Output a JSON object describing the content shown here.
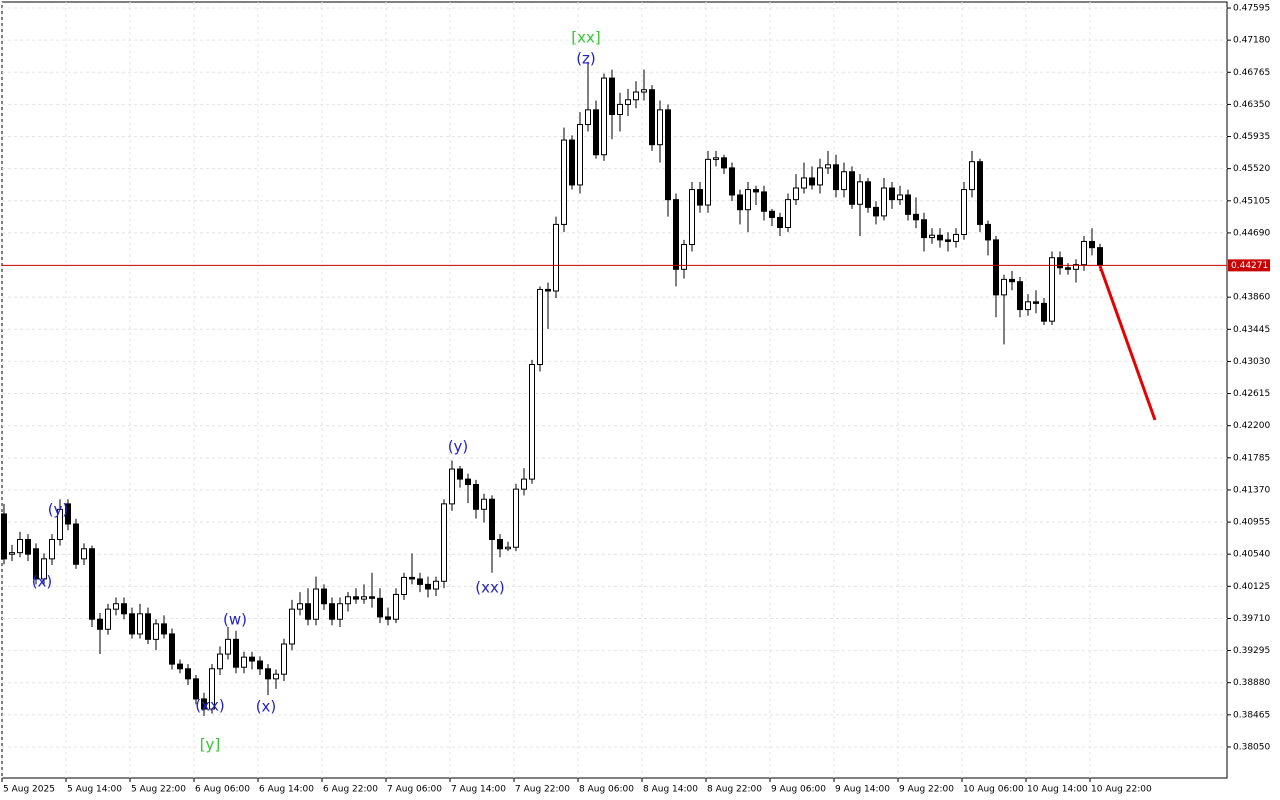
{
  "chart_data": {
    "type": "candlestick",
    "categories": [
      "5 Aug 2025",
      null,
      null,
      null,
      null,
      null,
      null,
      null,
      "5 Aug 14:00",
      null,
      null,
      null,
      null,
      null,
      null,
      null,
      "5 Aug 22:00",
      null,
      null,
      null,
      null,
      null,
      null,
      null,
      "6 Aug 06:00",
      null,
      null,
      null,
      null,
      null,
      null,
      null,
      "6 Aug 14:00",
      null,
      null,
      null,
      null,
      null,
      null,
      null,
      "6 Aug 22:00",
      null,
      null,
      null,
      null,
      null,
      null,
      null,
      "7 Aug 06:00",
      null,
      null,
      null,
      null,
      null,
      null,
      null,
      "7 Aug 14:00",
      null,
      null,
      null,
      null,
      null,
      null,
      null,
      "7 Aug 22:00",
      null,
      null,
      null,
      null,
      null,
      null,
      null,
      "8 Aug 06:00",
      null,
      null,
      null,
      null,
      null,
      null,
      null,
      "8 Aug 14:00",
      null,
      null,
      null,
      null,
      null,
      null,
      null,
      "8 Aug 22:00",
      null,
      null,
      null,
      null,
      null,
      null,
      null,
      "9 Aug 06:00",
      null,
      null,
      null,
      null,
      null,
      null,
      null,
      "9 Aug 14:00",
      null,
      null,
      null,
      null,
      null,
      null,
      null,
      "9 Aug 22:00",
      null,
      null,
      null,
      null,
      null,
      null,
      null,
      "10 Aug 06:00",
      null,
      null,
      null,
      null,
      null,
      null,
      null,
      "10 Aug 14:00",
      null,
      null,
      null,
      null,
      null,
      null,
      null,
      "10 Aug 22:00",
      null
    ],
    "open": [
      0.4106,
      0.4054,
      0.4056,
      0.4073,
      0.4061,
      0.4022,
      0.4048,
      0.4073,
      0.4119,
      0.4093,
      0.4048,
      0.4061,
      0.397,
      0.3957,
      0.3983,
      0.399,
      0.3977,
      0.3951,
      0.3977,
      0.3944,
      0.3964,
      0.3951,
      0.3912,
      0.3906,
      0.3893,
      0.3867,
      0.3854,
      0.3906,
      0.3925,
      0.3944,
      0.3908,
      0.3921,
      0.3916,
      0.3906,
      0.3893,
      0.3899,
      0.3938,
      0.3983,
      0.399,
      0.397,
      0.4009,
      0.399,
      0.397,
      0.399,
      0.3999,
      0.3996,
      0.3999,
      0.3997,
      0.3973,
      0.397,
      0.4002,
      0.4024,
      0.4022,
      0.4015,
      0.4009,
      0.4019,
      0.4119,
      0.4164,
      0.4151,
      0.4144,
      0.4112,
      0.4125,
      0.4073,
      0.4061,
      0.4063,
      0.4138,
      0.4151,
      0.4299,
      0.4396,
      0.4394,
      0.448,
      0.4589,
      0.4531,
      0.4609,
      0.4628,
      0.457,
      0.4669,
      0.4622,
      0.4635,
      0.4641,
      0.4651,
      0.4654,
      0.4583,
      0.4628,
      0.4512,
      0.4422,
      0.4454,
      0.4525,
      0.4505,
      0.4564,
      0.4566,
      0.4553,
      0.4518,
      0.4499,
      0.4525,
      0.4522,
      0.4497,
      0.4489,
      0.4476,
      0.4512,
      0.4527,
      0.454,
      0.4531,
      0.4553,
      0.4557,
      0.4525,
      0.4548,
      0.4506,
      0.4535,
      0.4502,
      0.4491,
      0.4527,
      0.4512,
      0.4518,
      0.4493,
      0.4486,
      0.4463,
      0.4466,
      0.446,
      0.4458,
      0.4467,
      0.4525,
      0.4561,
      0.448,
      0.446,
      0.4389,
      0.4409,
      0.4406,
      0.437,
      0.438,
      0.4378,
      0.4355,
      0.4437,
      0.4424,
      0.4422,
      0.4428,
      0.4458,
      0.445
    ],
    "high": [
      0.4119,
      0.4066,
      0.4083,
      0.408,
      0.4068,
      0.4055,
      0.408,
      0.4125,
      0.4125,
      0.41,
      0.4068,
      0.4065,
      0.3978,
      0.399,
      0.3998,
      0.3998,
      0.3985,
      0.399,
      0.3985,
      0.397,
      0.3975,
      0.3958,
      0.3918,
      0.3912,
      0.3898,
      0.3875,
      0.3912,
      0.3935,
      0.396,
      0.3955,
      0.3928,
      0.3928,
      0.3922,
      0.3912,
      0.3905,
      0.3945,
      0.3995,
      0.4005,
      0.401,
      0.4025,
      0.4015,
      0.3998,
      0.3998,
      0.4005,
      0.401,
      0.4015,
      0.403,
      0.401,
      0.3985,
      0.401,
      0.403,
      0.4055,
      0.403,
      0.4025,
      0.4025,
      0.4125,
      0.4175,
      0.4168,
      0.4158,
      0.415,
      0.4132,
      0.413,
      0.408,
      0.407,
      0.4145,
      0.4165,
      0.4305,
      0.44,
      0.4405,
      0.449,
      0.4605,
      0.4595,
      0.4625,
      0.469,
      0.464,
      0.4675,
      0.468,
      0.465,
      0.4655,
      0.4665,
      0.468,
      0.466,
      0.464,
      0.4635,
      0.452,
      0.446,
      0.4535,
      0.4535,
      0.4575,
      0.4575,
      0.457,
      0.456,
      0.4525,
      0.4535,
      0.453,
      0.453,
      0.45,
      0.4495,
      0.452,
      0.4545,
      0.456,
      0.4555,
      0.4565,
      0.4575,
      0.457,
      0.456,
      0.4555,
      0.4545,
      0.454,
      0.451,
      0.454,
      0.4535,
      0.453,
      0.4525,
      0.4515,
      0.4495,
      0.4475,
      0.4475,
      0.447,
      0.4475,
      0.4535,
      0.4575,
      0.4565,
      0.4485,
      0.4465,
      0.4415,
      0.442,
      0.4412,
      0.439,
      0.4395,
      0.4385,
      0.4445,
      0.4445,
      0.443,
      0.4435,
      0.4465,
      0.4475,
      0.4455
    ],
    "low": [
      0.4041,
      0.4045,
      0.405,
      0.4045,
      0.4015,
      0.4015,
      0.404,
      0.4065,
      0.4085,
      0.4035,
      0.404,
      0.396,
      0.3925,
      0.395,
      0.3975,
      0.397,
      0.3945,
      0.3945,
      0.3938,
      0.393,
      0.3945,
      0.3905,
      0.39,
      0.3885,
      0.386,
      0.3845,
      0.3848,
      0.3898,
      0.3918,
      0.39,
      0.39,
      0.3905,
      0.3898,
      0.3872,
      0.388,
      0.389,
      0.393,
      0.3975,
      0.3962,
      0.3962,
      0.3982,
      0.3962,
      0.396,
      0.398,
      0.399,
      0.399,
      0.3985,
      0.3965,
      0.3962,
      0.3965,
      0.3995,
      0.4015,
      0.4005,
      0.3998,
      0.4,
      0.401,
      0.411,
      0.414,
      0.412,
      0.41,
      0.4095,
      0.403,
      0.405,
      0.4058,
      0.4058,
      0.413,
      0.4145,
      0.429,
      0.4345,
      0.4385,
      0.447,
      0.4525,
      0.452,
      0.46,
      0.4565,
      0.4562,
      0.459,
      0.46,
      0.462,
      0.463,
      0.464,
      0.4575,
      0.456,
      0.449,
      0.44,
      0.441,
      0.4445,
      0.4495,
      0.4495,
      0.4555,
      0.4545,
      0.451,
      0.448,
      0.447,
      0.4505,
      0.4485,
      0.4478,
      0.4465,
      0.447,
      0.4505,
      0.452,
      0.4525,
      0.452,
      0.4545,
      0.4515,
      0.4515,
      0.45,
      0.4465,
      0.4495,
      0.448,
      0.4485,
      0.45,
      0.4505,
      0.4485,
      0.4475,
      0.4445,
      0.4455,
      0.445,
      0.4445,
      0.445,
      0.446,
      0.4515,
      0.447,
      0.444,
      0.436,
      0.4325,
      0.4395,
      0.436,
      0.4362,
      0.4365,
      0.435,
      0.435,
      0.4415,
      0.4415,
      0.4405,
      0.442,
      0.444,
      0.442
    ],
    "close": [
      0.4048,
      0.4056,
      0.4073,
      0.4054,
      0.4022,
      0.4048,
      0.4073,
      0.4112,
      0.4093,
      0.4041,
      0.4061,
      0.397,
      0.3957,
      0.3983,
      0.399,
      0.3977,
      0.3951,
      0.3977,
      0.3944,
      0.3964,
      0.3951,
      0.3912,
      0.3906,
      0.3893,
      0.3867,
      0.3854,
      0.3906,
      0.3925,
      0.3944,
      0.3908,
      0.3921,
      0.3916,
      0.3906,
      0.3893,
      0.3899,
      0.3938,
      0.3983,
      0.399,
      0.397,
      0.4009,
      0.399,
      0.397,
      0.399,
      0.3999,
      0.3996,
      0.3999,
      0.3997,
      0.3973,
      0.397,
      0.4002,
      0.4024,
      0.4022,
      0.4015,
      0.4009,
      0.4019,
      0.4119,
      0.4164,
      0.4151,
      0.4144,
      0.4112,
      0.4125,
      0.4073,
      0.4061,
      0.4063,
      0.4138,
      0.4151,
      0.4299,
      0.4396,
      0.4394,
      0.448,
      0.4589,
      0.4531,
      0.4609,
      0.4628,
      0.457,
      0.4669,
      0.4622,
      0.4635,
      0.4641,
      0.4651,
      0.4654,
      0.4583,
      0.4628,
      0.4512,
      0.4422,
      0.4454,
      0.4525,
      0.4505,
      0.4564,
      0.4566,
      0.4553,
      0.4518,
      0.4499,
      0.4525,
      0.4522,
      0.4497,
      0.4489,
      0.4476,
      0.4512,
      0.4527,
      0.454,
      0.4531,
      0.4553,
      0.4557,
      0.4525,
      0.4548,
      0.4506,
      0.4535,
      0.4502,
      0.4491,
      0.4527,
      0.4512,
      0.4518,
      0.4493,
      0.4486,
      0.4463,
      0.4466,
      0.446,
      0.4458,
      0.4467,
      0.4525,
      0.4561,
      0.448,
      0.446,
      0.4389,
      0.4409,
      0.4406,
      0.437,
      0.438,
      0.4378,
      0.4355,
      0.4437,
      0.4424,
      0.4422,
      0.4428,
      0.4458,
      0.445,
      0.44271
    ],
    "up_color": "#ffffff",
    "down_color": "#000000",
    "outline_color": "#000000",
    "current_price": 0.44271,
    "price_line_color": "#c80000",
    "ylim": [
      0.37649,
      0.47673
    ],
    "yticks": [
      {
        "value": 0.3805,
        "label": "0.38050"
      },
      0.38465,
      {
        "value": 0.3888,
        "label": "0.38880"
      },
      0.39295,
      {
        "value": 0.3971,
        "label": "0.39710"
      },
      0.40125,
      {
        "value": 0.4054,
        "label": "0.40540"
      },
      0.40955,
      {
        "value": 0.4137,
        "label": "0.41370"
      },
      0.41785,
      {
        "value": 0.422,
        "label": "0.42200"
      },
      0.42615,
      {
        "value": 0.4303,
        "label": "0.43030"
      },
      0.43445,
      {
        "value": 0.4386,
        "label": "0.43860"
      },
      {
        "value": 0.4469,
        "label": "0.44690"
      },
      0.45105,
      {
        "value": 0.4552,
        "label": "0.45520"
      },
      0.45935,
      {
        "value": 0.4635,
        "label": "0.46350"
      },
      0.46765,
      {
        "value": 0.4718,
        "label": "0.47180"
      },
      0.47595
    ],
    "grid": true,
    "annotations": [
      {
        "text": "(y)",
        "color": "#2323c8"
      },
      {
        "text": "(x)",
        "color": "#2323c8"
      },
      {
        "text": "(w)",
        "color": "#2323c8"
      },
      {
        "text": "(xx)",
        "color": "#2323c8"
      },
      {
        "text": "[y]",
        "color": "#32c832"
      },
      {
        "text": "(x)",
        "color": "#2323c8"
      },
      {
        "text": "(y)",
        "color": "#2323c8"
      },
      {
        "text": "(xx)",
        "color": "#2323c8"
      },
      {
        "text": "[xx]",
        "color": "#32c832"
      },
      {
        "text": "(z)",
        "color": "#2323c8"
      }
    ]
  }
}
